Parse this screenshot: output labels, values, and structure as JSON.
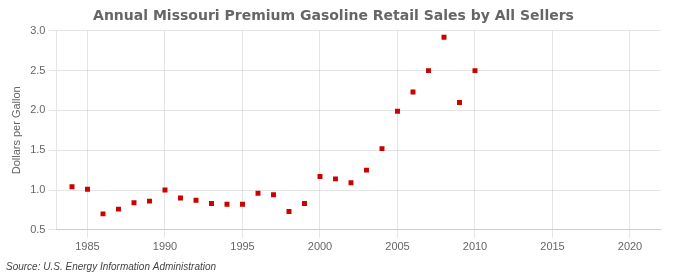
{
  "chart_data": {
    "type": "scatter",
    "title": "Annual Missouri Premium Gasoline Retail Sales by All Sellers",
    "ylabel": "Dollars per Gallon",
    "annotation": "Source: U.S. Energy Information Administration",
    "x": [
      1984,
      1985,
      1986,
      1987,
      1988,
      1989,
      1990,
      1991,
      1992,
      1993,
      1994,
      1995,
      1996,
      1997,
      1998,
      1999,
      2000,
      2001,
      2002,
      2003,
      2004,
      2005,
      2006,
      2007,
      2008,
      2009,
      2010
    ],
    "values": [
      1.04,
      1.01,
      0.7,
      0.76,
      0.84,
      0.86,
      1.0,
      0.9,
      0.87,
      0.83,
      0.82,
      0.82,
      0.96,
      0.94,
      0.73,
      0.83,
      1.17,
      1.14,
      1.09,
      1.25,
      1.52,
      1.99,
      2.23,
      2.5,
      2.92,
      2.1,
      2.5
    ],
    "color": "#cc0000",
    "marker": "square",
    "xlim": [
      1983,
      2022
    ],
    "ylim": [
      0.5,
      3.0
    ],
    "xticks": [
      1985,
      1990,
      1995,
      2000,
      2005,
      2010,
      2015,
      2020
    ],
    "yticks": [
      0.5,
      {
        "value": 1,
        "label": "1.0"
      },
      1.5,
      {
        "value": 2,
        "label": "2.0"
      },
      2.5,
      {
        "value": 3,
        "label": "3.0"
      }
    ],
    "grid": true
  }
}
